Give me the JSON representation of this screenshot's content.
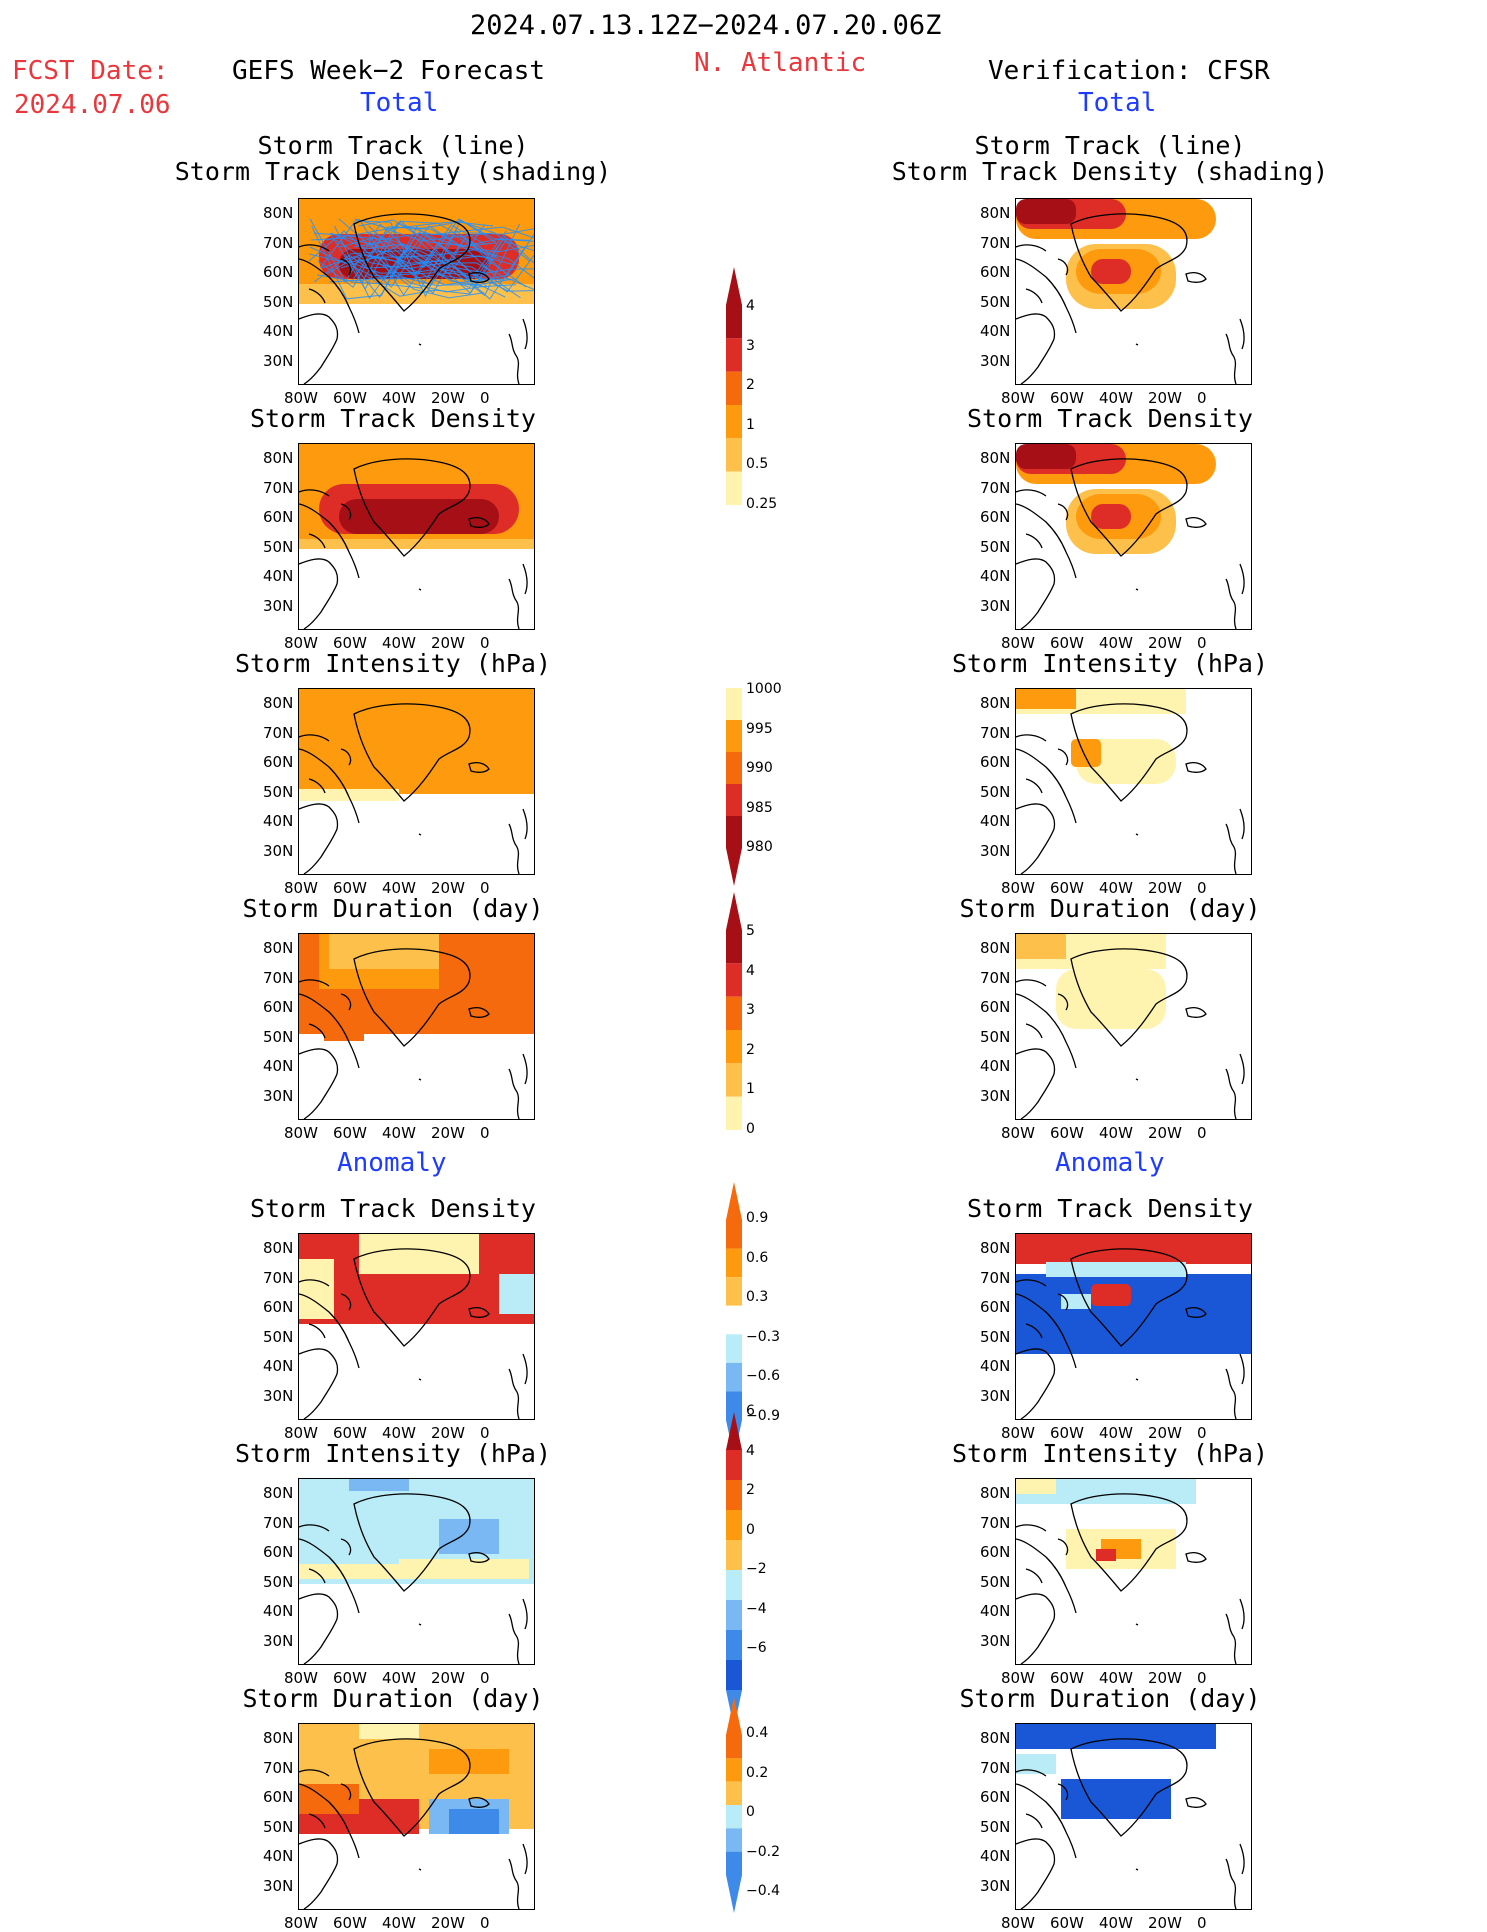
{
  "header": {
    "date_range": "2024.07.13.12Z−2024.07.20.06Z",
    "region": "N. Atlantic",
    "fcst_label": "FCST Date:",
    "fcst_date": "2024.07.06",
    "left_title": "GEFS Week−2 Forecast",
    "right_title": "Verification: CFSR",
    "total_left": "Total",
    "total_right": "Total",
    "anomaly_left": "Anomaly",
    "anomaly_right": "Anomaly"
  },
  "panel_titles": {
    "track_line": "Storm Track (line)",
    "track_shading": "Storm Track Density (shading)",
    "density": "Storm Track Density",
    "intensity": "Storm Intensity (hPa)",
    "duration": "Storm Duration (day)"
  },
  "axes": {
    "y_ticks": [
      "80N",
      "70N",
      "60N",
      "50N",
      "40N",
      "30N"
    ],
    "x_ticks": [
      "80W",
      "60W",
      "40W",
      "20W",
      "0"
    ]
  },
  "colorbars": {
    "density_total": [
      "4",
      "3",
      "2",
      "1",
      "0.5",
      "0.25"
    ],
    "intensity_total": [
      "1000",
      "995",
      "990",
      "985",
      "980"
    ],
    "duration_total": [
      "5",
      "4",
      "3",
      "2",
      "1",
      "0"
    ],
    "density_anom": [
      "0.9",
      "0.6",
      "0.3",
      "−0.3",
      "−0.6",
      "−0.9"
    ],
    "intensity_anom": [
      "6",
      "4",
      "2",
      "0",
      "−2",
      "−4",
      "−6"
    ],
    "duration_anom": [
      "0.4",
      "0.2",
      "0",
      "−0.2",
      "−0.4"
    ]
  },
  "colors": {
    "dark_red": "#a50f15",
    "red": "#de2d26",
    "orange_red": "#f46a0c",
    "orange": "#fd9a0e",
    "light_orange": "#fdc04a",
    "pale_yellow": "#fff3b0",
    "light_blue": "#b9ecf7",
    "mid_blue": "#79b8f2",
    "blue": "#3d8ae8",
    "dark_blue": "#1a57d6",
    "track_blue": "#1e90ff"
  }
}
